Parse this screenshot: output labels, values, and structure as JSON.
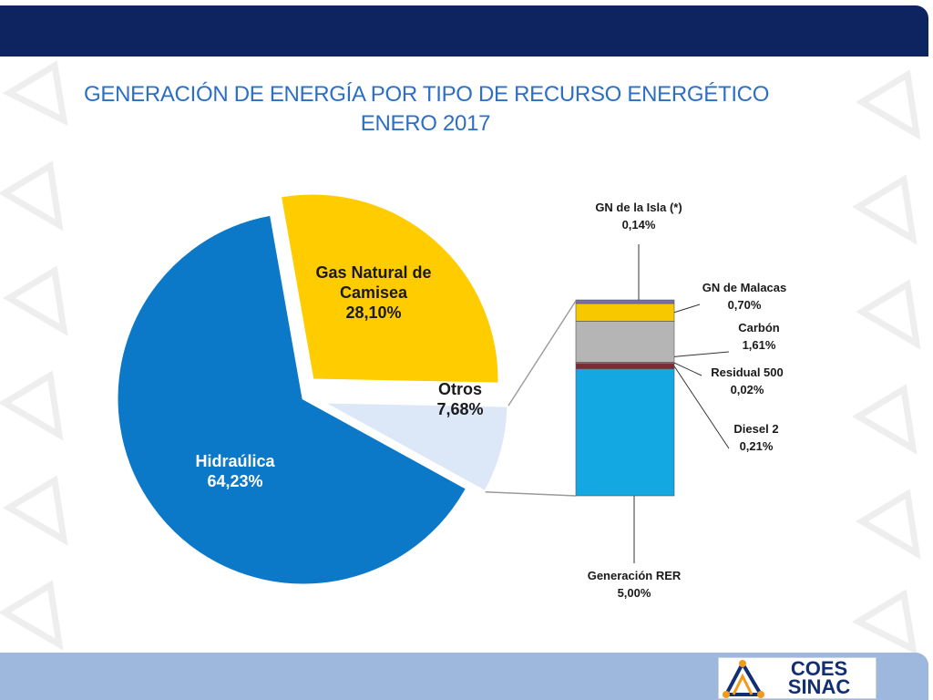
{
  "slide": {
    "title_line1": "GENERACIÓN DE ENERGÍA POR TIPO DE RECURSO ENERGÉTICO",
    "title_line2": "ENERO 2017"
  },
  "logo": {
    "line1": "COES",
    "line2": "SINAC"
  },
  "colors": {
    "hidraulica": "#0c78c8",
    "gas_camisea": "#ffcc00",
    "otros": "#dce8f8",
    "generacion_rer": "#14a8e2",
    "diesel_2": "#7b2b33",
    "residual_500": "#c07088",
    "carbon": "#b5b5b5",
    "gn_malacas": "#f7c800",
    "gn_isla": "#7a6ea8",
    "header": "#0d2461",
    "footer": "#9db8dc",
    "title": "#2c6fc4"
  },
  "chart_data": [
    {
      "type": "pie",
      "slices": [
        {
          "name": "Gas Natural de Camisea",
          "label_lines": [
            "Gas Natural de",
            "Camisea"
          ],
          "value_label": "28,10%",
          "value": 28.1
        },
        {
          "name": "Otros",
          "label_lines": [
            "Otros"
          ],
          "value_label": "7,68%",
          "value": 7.68,
          "exploded": true
        },
        {
          "name": "Hidraúlica",
          "label_lines": [
            "Hidraúlica"
          ],
          "value_label": "64,23%",
          "value": 64.23
        }
      ]
    },
    {
      "type": "bar",
      "stacked": true,
      "breakdown_of": "Otros",
      "segments": [
        {
          "name": "Generación RER",
          "value_label": "5,00%",
          "value": 5.0
        },
        {
          "name": "Diesel 2",
          "value_label": "0,21%",
          "value": 0.21
        },
        {
          "name": "Residual 500",
          "value_label": "0,02%",
          "value": 0.02
        },
        {
          "name": "Carbón",
          "value_label": "1,61%",
          "value": 1.61
        },
        {
          "name": "GN de Malacas",
          "value_label": "0,70%",
          "value": 0.7
        },
        {
          "name": "GN de la Isla (*)",
          "value_label": "0,14%",
          "value": 0.14
        }
      ]
    }
  ]
}
